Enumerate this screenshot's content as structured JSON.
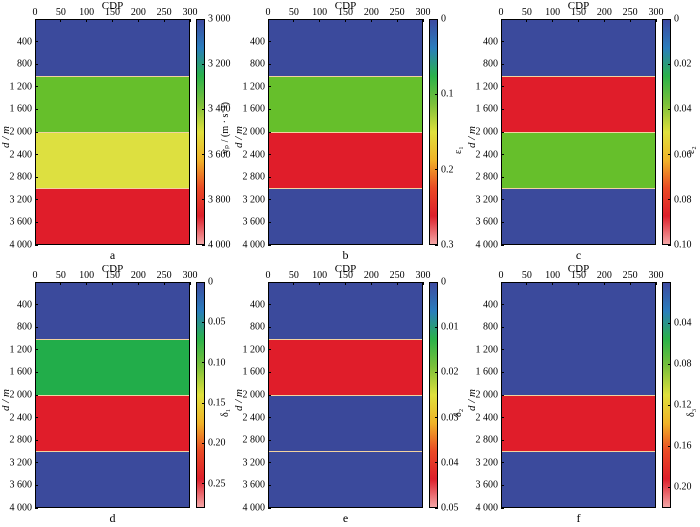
{
  "colors": {
    "blue": "#3b4a9c",
    "green_bright": "#66bf2b",
    "green_dark": "#22ad4a",
    "yellow": "#dde040",
    "red": "#e01d2a",
    "boundary": "#f2d3a0"
  },
  "colorbar_gradient_stops": [
    "#3d4aa0",
    "#2a7dbd",
    "#2ab24a",
    "#7cc03a",
    "#dfe03c",
    "#f0b328",
    "#ea4a25",
    "#dd1f2b",
    "#f4a6a6"
  ],
  "panels": [
    {
      "letter": "a",
      "x_title": "CDP",
      "x_ticks": [
        "0",
        "50",
        "100",
        "150",
        "200",
        "250",
        "300"
      ],
      "y_title": "d / m",
      "y_ticks": [
        "400",
        "800",
        "1 200",
        "1 600",
        "2 000",
        "2 400",
        "2 800",
        "3 200",
        "3 600",
        "4 000"
      ],
      "cbar_title": "vₚ / (m · s⁻¹)",
      "cbar_ticks": [
        "3 000",
        "3 200",
        "3 400",
        "3 600",
        "3 800",
        "4 000"
      ],
      "cbar_range": [
        3000,
        4000
      ],
      "layers": [
        {
          "from_depth": 0,
          "to_depth": 1000,
          "color": "#3b4a9c"
        },
        {
          "from_depth": 1000,
          "to_depth": 2000,
          "color": "#66bf2b"
        },
        {
          "from_depth": 2000,
          "to_depth": 3000,
          "color": "#dde040"
        },
        {
          "from_depth": 3000,
          "to_depth": 4000,
          "color": "#e01d2a"
        }
      ]
    },
    {
      "letter": "b",
      "x_title": "CDP",
      "x_ticks": [
        "0",
        "50",
        "100",
        "150",
        "200",
        "250",
        "300"
      ],
      "y_title": "d / m",
      "y_ticks": [
        "400",
        "800",
        "1 200",
        "1 600",
        "2 000",
        "2 400",
        "2 800",
        "3 200",
        "3 600",
        "4 000"
      ],
      "cbar_title": "ε₁",
      "cbar_ticks": [
        "0",
        "0.1",
        "0.2",
        "0.3"
      ],
      "cbar_range": [
        0,
        0.3
      ],
      "layers": [
        {
          "from_depth": 0,
          "to_depth": 1000,
          "color": "#3b4a9c"
        },
        {
          "from_depth": 1000,
          "to_depth": 2000,
          "color": "#66bf2b"
        },
        {
          "from_depth": 2000,
          "to_depth": 3000,
          "color": "#e01d2a"
        },
        {
          "from_depth": 3000,
          "to_depth": 4000,
          "color": "#3b4a9c"
        }
      ]
    },
    {
      "letter": "c",
      "x_title": "CDP",
      "x_ticks": [
        "0",
        "50",
        "100",
        "150",
        "200",
        "250",
        "300"
      ],
      "y_title": "d / m",
      "y_ticks": [
        "400",
        "800",
        "1 200",
        "1 600",
        "2 000",
        "2 400",
        "2 800",
        "3 200",
        "3 600",
        "4 000"
      ],
      "cbar_title": "ε₂",
      "cbar_ticks": [
        "0",
        "0.02",
        "0.04",
        "0.06",
        "0.08",
        "0.10"
      ],
      "cbar_range": [
        0,
        0.1
      ],
      "layers": [
        {
          "from_depth": 0,
          "to_depth": 1000,
          "color": "#3b4a9c"
        },
        {
          "from_depth": 1000,
          "to_depth": 2000,
          "color": "#e01d2a"
        },
        {
          "from_depth": 2000,
          "to_depth": 3000,
          "color": "#66bf2b"
        },
        {
          "from_depth": 3000,
          "to_depth": 4000,
          "color": "#3b4a9c"
        }
      ]
    },
    {
      "letter": "d",
      "x_title": "CDP",
      "x_ticks": [
        "0",
        "50",
        "100",
        "150",
        "200",
        "250",
        "300"
      ],
      "y_title": "d / m",
      "y_ticks": [
        "400",
        "800",
        "1 200",
        "1 600",
        "2 000",
        "2 400",
        "2 800",
        "3 200",
        "3 600",
        "4 000"
      ],
      "cbar_title": "δ₁",
      "cbar_ticks": [
        "0",
        "0.05",
        "0.10",
        "0.15",
        "0.20",
        "0.25"
      ],
      "cbar_range": [
        0,
        0.28
      ],
      "layers": [
        {
          "from_depth": 0,
          "to_depth": 1000,
          "color": "#3b4a9c"
        },
        {
          "from_depth": 1000,
          "to_depth": 2000,
          "color": "#22ad4a"
        },
        {
          "from_depth": 2000,
          "to_depth": 3000,
          "color": "#e01d2a"
        },
        {
          "from_depth": 3000,
          "to_depth": 4000,
          "color": "#3b4a9c"
        }
      ]
    },
    {
      "letter": "e",
      "x_title": "CDP",
      "x_ticks": [
        "0",
        "50",
        "100",
        "150",
        "200",
        "250",
        "300"
      ],
      "y_title": "d / m",
      "y_ticks": [
        "400",
        "800",
        "1 200",
        "1 600",
        "2 000",
        "2 400",
        "2 800",
        "3 200",
        "3 600",
        "4 000"
      ],
      "cbar_title": "δ₂",
      "cbar_ticks": [
        "0",
        "0.01",
        "0.02",
        "0.03",
        "0.04",
        "0.05"
      ],
      "cbar_range": [
        0,
        0.05
      ],
      "layers": [
        {
          "from_depth": 0,
          "to_depth": 1000,
          "color": "#3b4a9c"
        },
        {
          "from_depth": 1000,
          "to_depth": 2000,
          "color": "#e01d2a"
        },
        {
          "from_depth": 2000,
          "to_depth": 3000,
          "color": "#3a489a"
        },
        {
          "from_depth": 3000,
          "to_depth": 4000,
          "color": "#3b4a9c"
        }
      ]
    },
    {
      "letter": "f",
      "x_title": "CDP",
      "x_ticks": [
        "0",
        "50",
        "100",
        "150",
        "200",
        "250",
        "300"
      ],
      "y_title": "d / m",
      "y_ticks": [
        "400",
        "800",
        "1 200",
        "1 600",
        "2 000",
        "2 400",
        "2 800",
        "3 200",
        "3 600",
        "4 000"
      ],
      "cbar_title": "δ₃",
      "cbar_ticks": [
        "0.04",
        "0.08",
        "0.12",
        "0.16",
        "0.20"
      ],
      "cbar_range": [
        0,
        0.22
      ],
      "layers": [
        {
          "from_depth": 0,
          "to_depth": 2000,
          "color": "#3b4a9c"
        },
        {
          "from_depth": 2000,
          "to_depth": 3000,
          "color": "#e01d2a"
        },
        {
          "from_depth": 3000,
          "to_depth": 4000,
          "color": "#3b4a9c"
        }
      ]
    }
  ],
  "chart_data": [
    {
      "type": "heatmap",
      "xlabel": "CDP",
      "ylabel": "d / m",
      "xlim": [
        0,
        300
      ],
      "ylim": [
        4000,
        0
      ],
      "colorbar_label": "vₚ / (m · s⁻¹)",
      "colorbar_range": [
        3000,
        4000
      ]
    },
    {
      "type": "heatmap",
      "xlabel": "CDP",
      "ylabel": "d / m",
      "xlim": [
        0,
        300
      ],
      "ylim": [
        4000,
        0
      ],
      "colorbar_label": "ε₁",
      "colorbar_range": [
        0,
        0.3
      ]
    },
    {
      "type": "heatmap",
      "xlabel": "CDP",
      "ylabel": "d / m",
      "xlim": [
        0,
        300
      ],
      "ylim": [
        4000,
        0
      ],
      "colorbar_label": "ε₂",
      "colorbar_range": [
        0,
        0.1
      ]
    },
    {
      "type": "heatmap",
      "xlabel": "CDP",
      "ylabel": "d / m",
      "xlim": [
        0,
        300
      ],
      "ylim": [
        4000,
        0
      ],
      "colorbar_label": "δ₁",
      "colorbar_range": [
        0,
        0.28
      ]
    },
    {
      "type": "heatmap",
      "xlabel": "CDP",
      "ylabel": "d / m",
      "xlim": [
        0,
        300
      ],
      "ylim": [
        4000,
        0
      ],
      "colorbar_label": "δ₂",
      "colorbar_range": [
        0,
        0.05
      ]
    },
    {
      "type": "heatmap",
      "xlabel": "CDP",
      "ylabel": "d / m",
      "xlim": [
        0,
        300
      ],
      "ylim": [
        4000,
        0
      ],
      "colorbar_label": "δ₃",
      "colorbar_range": [
        0,
        0.22
      ]
    }
  ]
}
